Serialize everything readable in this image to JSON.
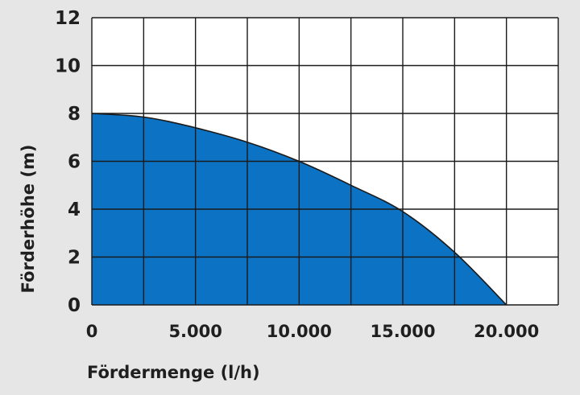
{
  "chart_data": {
    "type": "area",
    "title": "",
    "xlabel": "Fördermenge (l/h)",
    "ylabel": "Förderhöhe (m)",
    "xlim": [
      0,
      22500
    ],
    "ylim": [
      0,
      12
    ],
    "x_ticks": [
      0,
      5000,
      10000,
      15000,
      20000
    ],
    "x_tick_labels": [
      "0",
      "5.000",
      "10.000",
      "15.000",
      "20.000"
    ],
    "y_ticks": [
      0,
      2,
      4,
      6,
      8,
      10,
      12
    ],
    "y_tick_labels": [
      "0",
      "2",
      "4",
      "6",
      "8",
      "10",
      "12"
    ],
    "grid_x_step": 2500,
    "grid_y_step": 2,
    "grid": true,
    "legend": "none",
    "series": [
      {
        "x": [
          0,
          2500,
          5000,
          7500,
          10000,
          12500,
          15000,
          17500,
          20000
        ],
        "y": [
          8,
          7.85,
          7.4,
          6.8,
          6.0,
          5.0,
          3.9,
          2.2,
          0
        ]
      }
    ],
    "colors": {
      "fill": "#0b72c4",
      "curve": "#1a1a1a",
      "plot_background": "#ffffff",
      "frame_background": "#e6e6e6",
      "grid": "#1a1a1a"
    }
  }
}
